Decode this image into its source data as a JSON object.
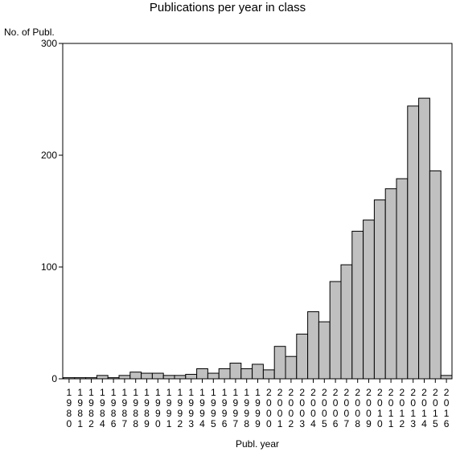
{
  "chart_data": {
    "type": "bar",
    "title": "Publications per year in class",
    "ylabel": "No. of Publ.",
    "xlabel": "Publ. year",
    "ylim": [
      0,
      300
    ],
    "yticks": [
      0,
      100,
      200,
      300
    ],
    "grid": false,
    "legend": "none",
    "bar_color": "#c0c0c0",
    "categories": [
      "1980",
      "1981",
      "1982",
      "1984",
      "1986",
      "1987",
      "1988",
      "1989",
      "1990",
      "1991",
      "1992",
      "1993",
      "1994",
      "1995",
      "1996",
      "1997",
      "1998",
      "1999",
      "2000",
      "2001",
      "2002",
      "2003",
      "2004",
      "2005",
      "2006",
      "2007",
      "2008",
      "2009",
      "2010",
      "2011",
      "2012",
      "2013",
      "2014",
      "2015",
      "2016"
    ],
    "values": [
      1,
      1,
      1,
      3,
      1,
      3,
      6,
      5,
      5,
      3,
      3,
      4,
      9,
      5,
      9,
      14,
      9,
      13,
      8,
      29,
      20,
      40,
      60,
      51,
      87,
      102,
      132,
      142,
      160,
      170,
      179,
      244,
      251,
      186,
      3
    ]
  }
}
